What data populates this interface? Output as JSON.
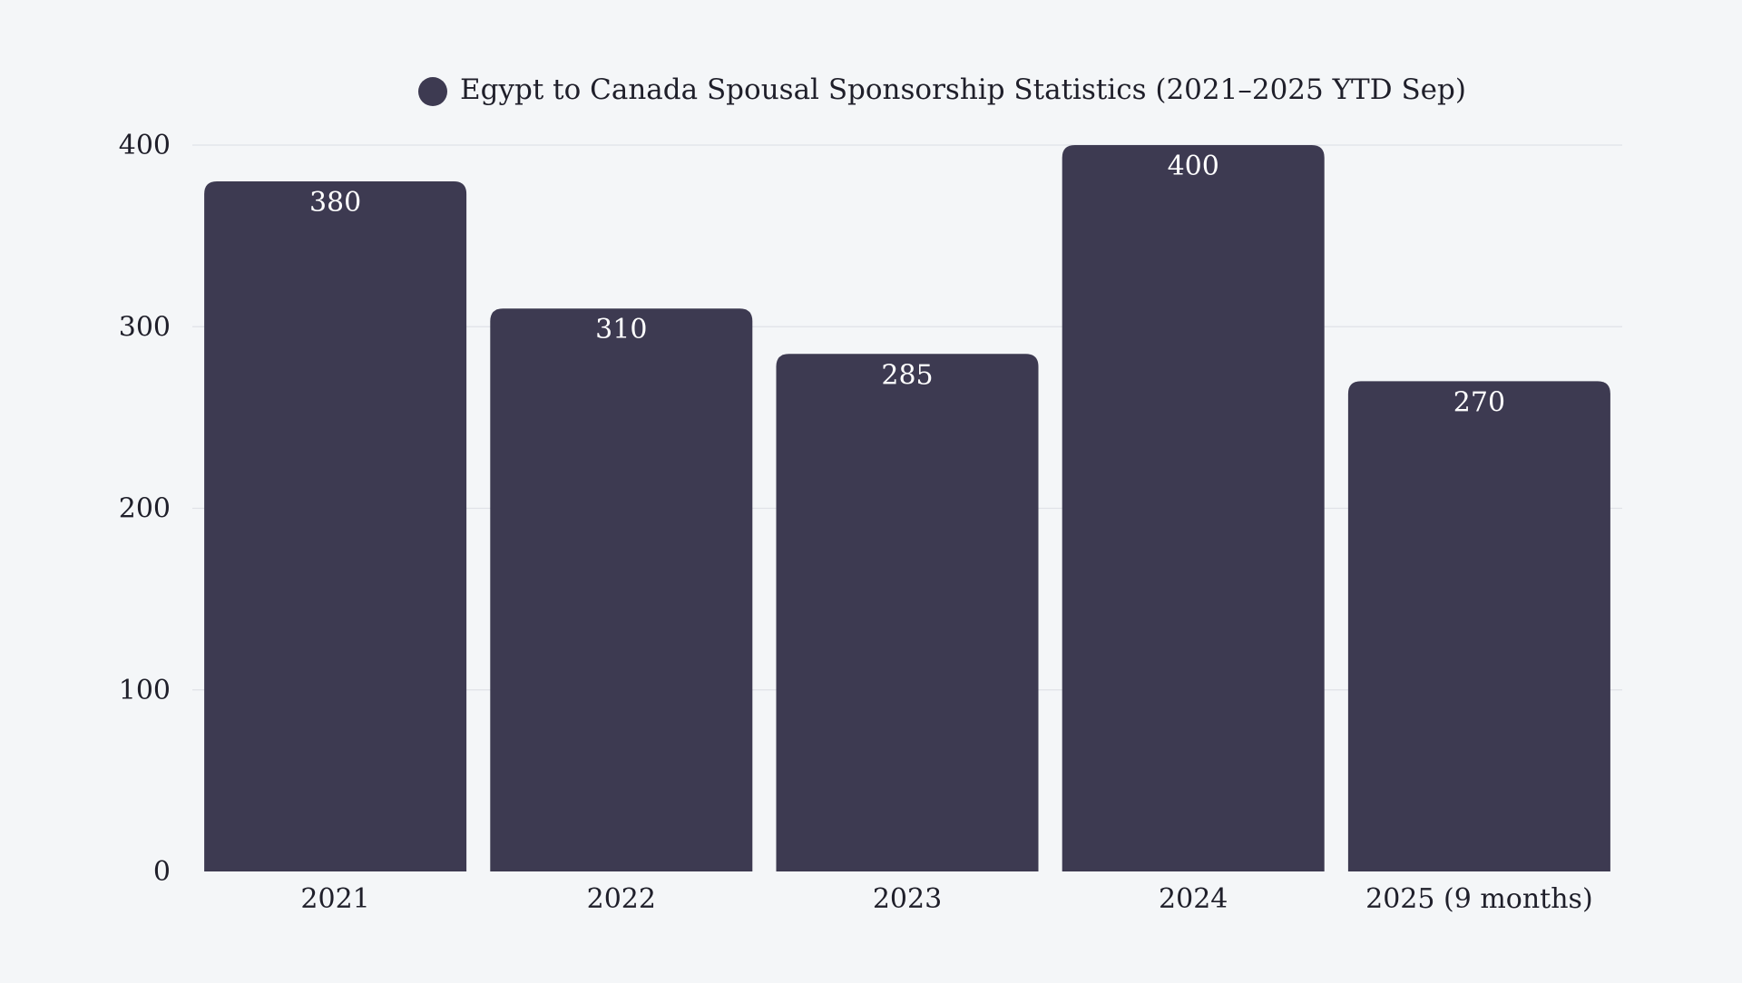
{
  "chart_data": {
    "type": "bar",
    "title": "Egypt to Canada Spousal Sponsorship Statistics (2021–2025 YTD Sep)",
    "legend": {
      "entries": [
        "Egypt to Canada Spousal Sponsorship Statistics (2021–2025 YTD Sep)"
      ],
      "placement": "top-center"
    },
    "categories": [
      "2021",
      "2022",
      "2023",
      "2024",
      "2025 (9 months)"
    ],
    "series": [
      {
        "name": "Egypt to Canada Spousal Sponsorship Statistics (2021–2025 YTD Sep)",
        "values": [
          380,
          310,
          285,
          400,
          270
        ],
        "color": "#3d3a51"
      }
    ],
    "ylim": [
      0,
      400
    ],
    "yticks": [
      0,
      100,
      200,
      300,
      400
    ],
    "grid": true,
    "xlabel": "",
    "ylabel": ""
  }
}
